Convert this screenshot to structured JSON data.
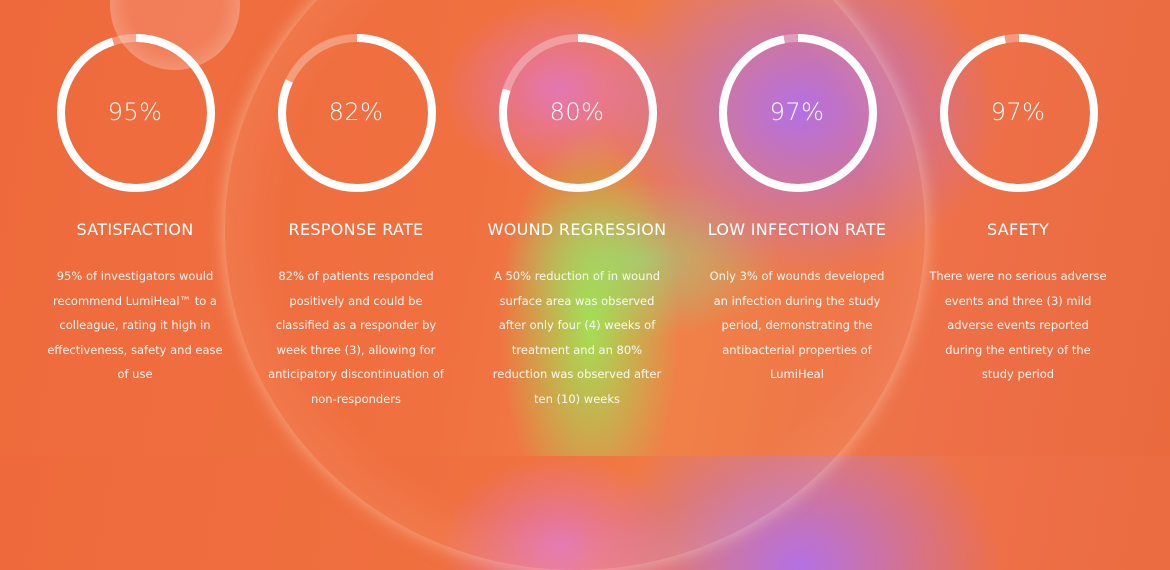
{
  "stats": [
    {
      "value": "95%",
      "percent": 95,
      "title": "SATISFACTION",
      "description": "95% of investigators would recommend LumiHeal™ to a colleague, rating it high in effectiveness, safety and ease of use"
    },
    {
      "value": "82%",
      "percent": 82,
      "title": "RESPONSE RATE",
      "description": "82% of patients responded positively and could be classified as a responder by week three (3), allowing for anticipatory discontinuation of non-responders"
    },
    {
      "value": "80%",
      "percent": 80,
      "title": "WOUND REGRESSION",
      "description": "A 50% reduction of in wound surface area was observed after only four (4) weeks of treatment and an 80% reduction was observed after ten (10) weeks"
    },
    {
      "value": "97%",
      "percent": 97,
      "title": "LOW INFECTION RATE",
      "description": "Only 3% of wounds developed an infection during the study period, demonstrating the antibacterial properties of LumiHeal"
    },
    {
      "value": "97%",
      "percent": 97,
      "title": "SAFETY",
      "description": "There were no serious adverse events and three (3) mild adverse events reported during the entirety of the study period"
    }
  ],
  "colors": {
    "background": "#ee6a3c",
    "ring": "#ffffff"
  }
}
